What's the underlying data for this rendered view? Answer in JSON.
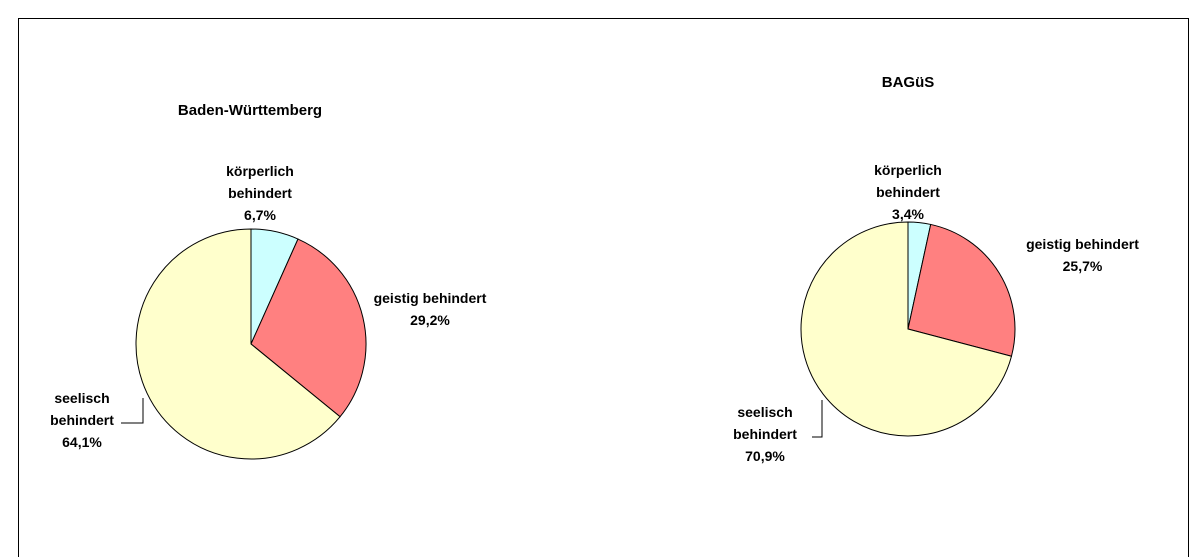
{
  "chart_data": [
    {
      "type": "pie",
      "title": "Baden-Württemberg",
      "categories": [
        "körperlich behindert",
        "geistig behindert",
        "seelisch behindert"
      ],
      "values": [
        6.7,
        29.2,
        64.1
      ],
      "value_labels": [
        "6,7%",
        "29,2%",
        "64,1%"
      ],
      "colors": [
        "#ccffff",
        "#ff8080",
        "#ffffcc"
      ]
    },
    {
      "type": "pie",
      "title": "BAGüS",
      "categories": [
        "körperlich behindert",
        "geistig behindert",
        "seelisch behindert"
      ],
      "values": [
        3.4,
        25.7,
        70.9
      ],
      "value_labels": [
        "3,4%",
        "25,7%",
        "70,9%"
      ],
      "colors": [
        "#ccffff",
        "#ff8080",
        "#ffffcc"
      ]
    }
  ]
}
